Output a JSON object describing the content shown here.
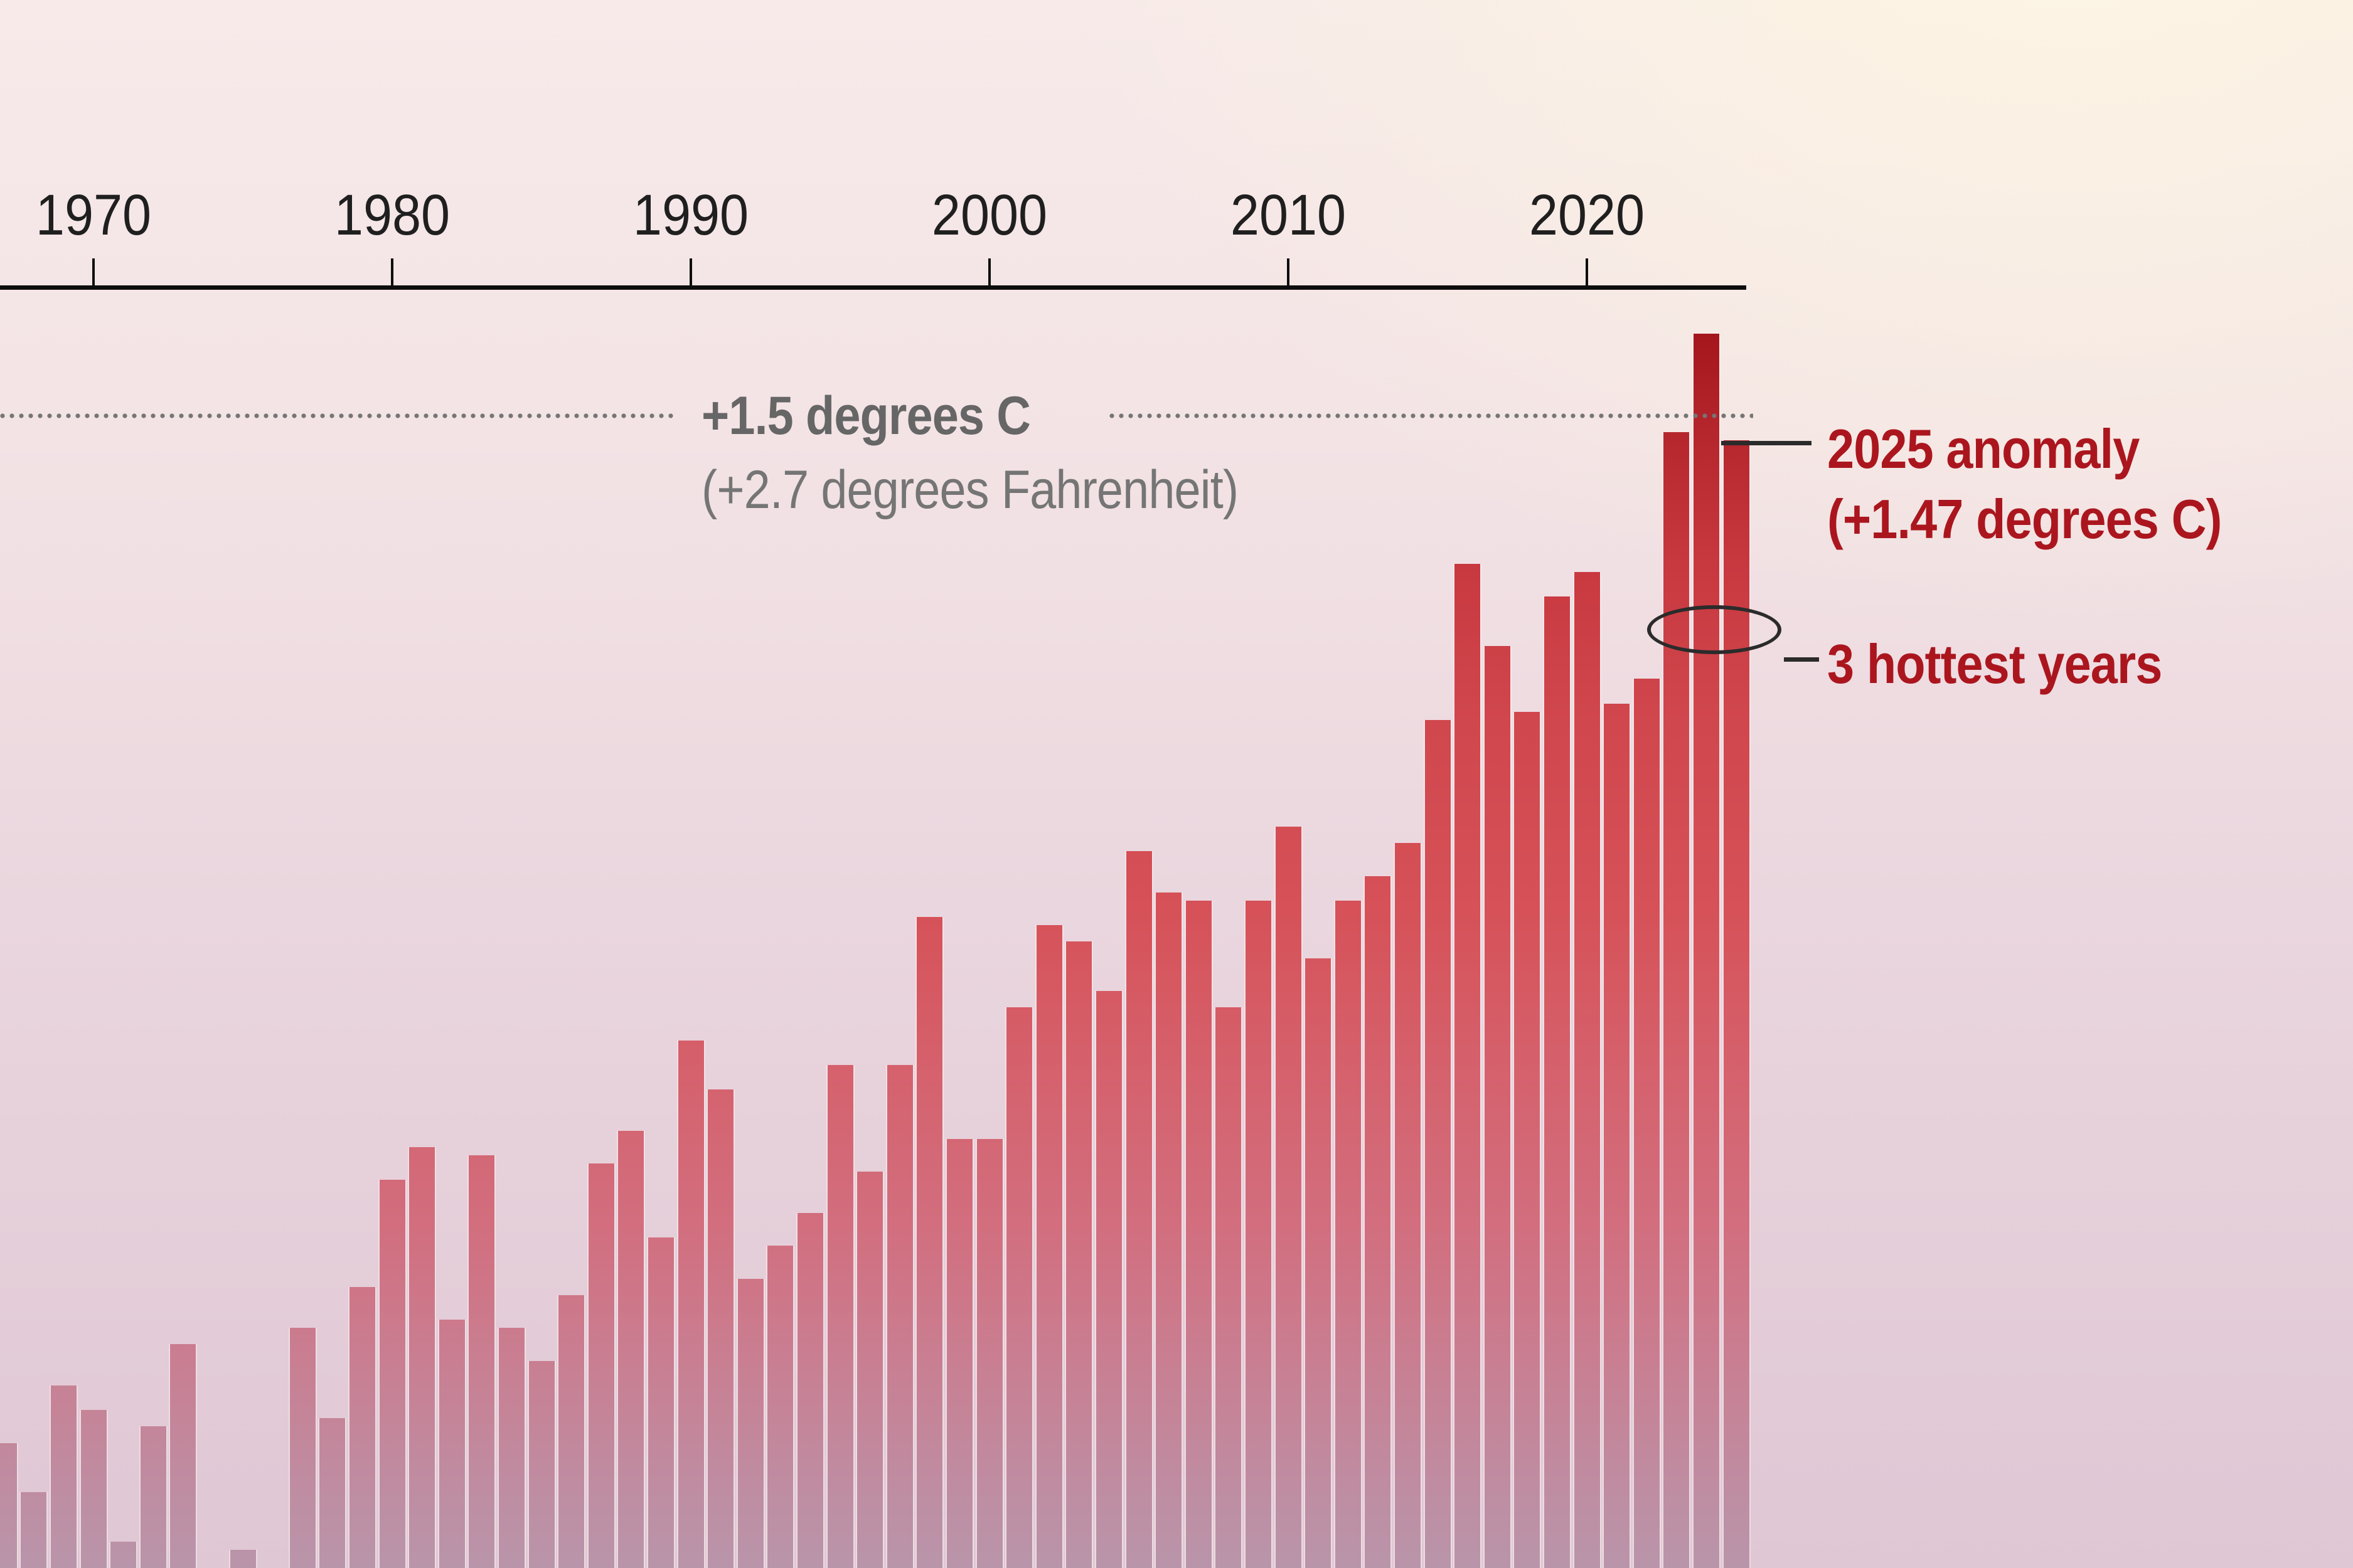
{
  "chart_data": {
    "type": "bar",
    "title": "Global temperature anomaly by year",
    "start_year": 1967,
    "categories": [
      1967,
      1968,
      1969,
      1970,
      1971,
      1972,
      1973,
      1974,
      1975,
      1976,
      1977,
      1978,
      1979,
      1980,
      1981,
      1982,
      1983,
      1984,
      1985,
      1986,
      1987,
      1988,
      1989,
      1990,
      1991,
      1992,
      1993,
      1994,
      1995,
      1996,
      1997,
      1998,
      1999,
      2000,
      2001,
      2002,
      2003,
      2004,
      2005,
      2006,
      2007,
      2008,
      2009,
      2010,
      2011,
      2012,
      2013,
      2014,
      2015,
      2016,
      2017,
      2018,
      2019,
      2020,
      2021,
      2022,
      2023,
      2024,
      2025
    ],
    "values": [
      0.25,
      0.19,
      0.32,
      0.29,
      0.13,
      0.27,
      0.37,
      0.08,
      0.12,
      0.07,
      0.39,
      0.28,
      0.44,
      0.57,
      0.61,
      0.4,
      0.6,
      0.39,
      0.35,
      0.43,
      0.59,
      0.63,
      0.5,
      0.74,
      0.68,
      0.45,
      0.49,
      0.53,
      0.71,
      0.58,
      0.71,
      0.89,
      0.62,
      0.62,
      0.78,
      0.88,
      0.86,
      0.8,
      0.97,
      0.92,
      0.91,
      0.78,
      0.91,
      1.0,
      0.84,
      0.91,
      0.94,
      0.98,
      1.13,
      1.32,
      1.22,
      1.14,
      1.28,
      1.31,
      1.15,
      1.18,
      1.48,
      1.6,
      1.47
    ],
    "value_unit": "degrees C",
    "xlabel": "",
    "ylabel": "",
    "grid": false,
    "legend": "none",
    "x_axis_ticks": [
      "1970",
      "1980",
      "1990",
      "2000",
      "2010",
      "2020"
    ],
    "reference_line": {
      "value": 1.5,
      "label_bold": "+1.5 degrees C",
      "label_secondary": "(+2.7 degrees Fahrenheit)",
      "style": "dotted"
    },
    "highlighted_years": [
      2023,
      2024,
      2025
    ]
  },
  "annotations": {
    "anomaly_line1": "2025 anomaly",
    "anomaly_line2": "(+1.47 degrees C)",
    "hottest": "3 hottest years"
  },
  "axis": {
    "tick_1970": "1970",
    "tick_1980": "1980",
    "tick_1990": "1990",
    "tick_2000": "2000",
    "tick_2010": "2010",
    "tick_2020": "2020"
  },
  "colors": {
    "axis": "#0d0d0d",
    "tick_label": "#1f1f1f",
    "dotted_line": "#757575",
    "ref_label_bold": "#666666",
    "ref_label_secondary": "#757575",
    "annotation_red": "#ab161e",
    "connector_dark": "#2b2b2b",
    "bar_gradient_top": "#9b0f16",
    "bar_gradient_hot": "#c8383f",
    "bar_gradient_mid": "#d5616c",
    "bar_gradient_low": "#ca7d90",
    "bar_gradient_bottom": "#b995aa",
    "background_top_left": "#f7eae9",
    "background_top_right": "#fdf6e2",
    "background_bottom": "#dfc7d4"
  }
}
